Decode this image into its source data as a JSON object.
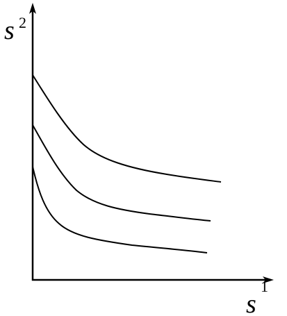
{
  "axes": {
    "y": {
      "label": "s",
      "superscript": "2"
    },
    "x": {
      "label": "s",
      "superscript": "1"
    }
  }
}
